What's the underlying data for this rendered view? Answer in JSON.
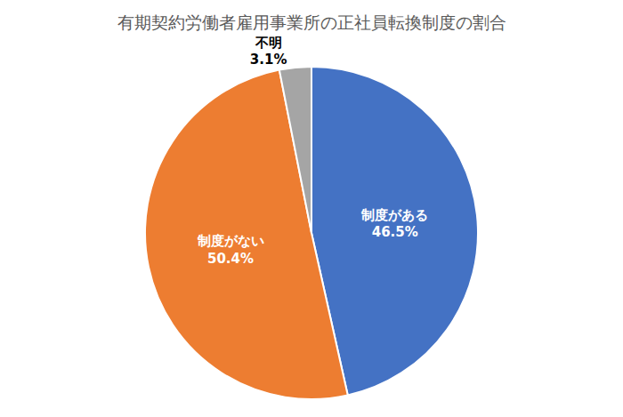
{
  "chart_data": {
    "type": "pie",
    "title": "有期契約労働者雇用事業所の正社員転換制度の割合",
    "categories": [
      "制度がある",
      "制度がない",
      "不明"
    ],
    "values": [
      46.5,
      50.4,
      3.1
    ],
    "value_labels": [
      "46.5%",
      "50.4%",
      "3.1%"
    ],
    "colors": [
      "#4472c4",
      "#ed7d31",
      "#a5a5a5"
    ],
    "data_labels": true,
    "legend": false
  }
}
